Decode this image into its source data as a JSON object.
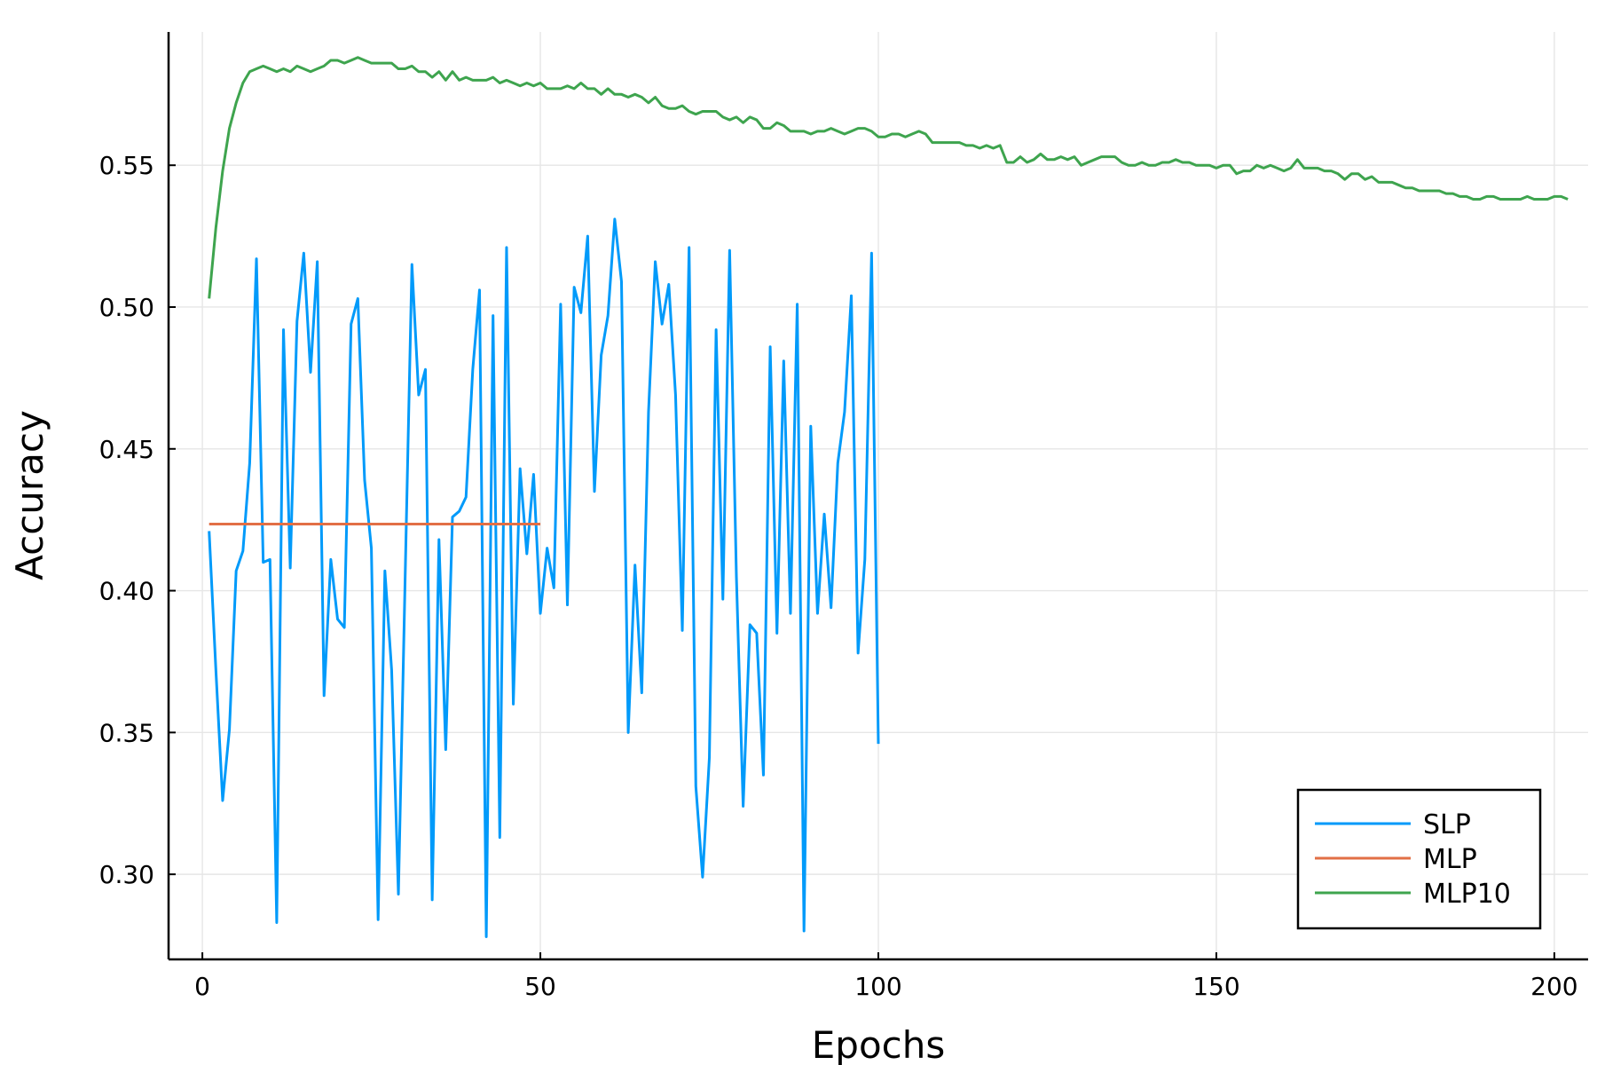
{
  "chart_data": {
    "type": "line",
    "title": "",
    "xlabel": "Epochs",
    "ylabel": "Accuracy",
    "xlim": [
      -5,
      205
    ],
    "ylim": [
      0.27,
      0.597
    ],
    "xticks": [
      0,
      50,
      100,
      150,
      200
    ],
    "yticks": [
      0.3,
      0.35,
      0.4,
      0.45,
      0.5,
      0.55
    ],
    "xtick_labels": [
      "0",
      "50",
      "100",
      "150",
      "200"
    ],
    "ytick_labels": [
      "0.30",
      "0.35",
      "0.40",
      "0.45",
      "0.50",
      "0.55"
    ],
    "grid": true,
    "legend_position": "bottom-right",
    "series": [
      {
        "name": "SLP",
        "color": "#009AFA",
        "x_start": 1,
        "values": [
          0.421,
          0.372,
          0.326,
          0.351,
          0.407,
          0.414,
          0.445,
          0.517,
          0.41,
          0.411,
          0.283,
          0.492,
          0.408,
          0.495,
          0.519,
          0.477,
          0.516,
          0.363,
          0.411,
          0.39,
          0.387,
          0.494,
          0.503,
          0.439,
          0.415,
          0.284,
          0.407,
          0.372,
          0.293,
          0.405,
          0.515,
          0.469,
          0.478,
          0.291,
          0.418,
          0.344,
          0.426,
          0.428,
          0.433,
          0.478,
          0.506,
          0.278,
          0.497,
          0.313,
          0.521,
          0.36,
          0.443,
          0.413,
          0.441,
          0.392,
          0.415,
          0.401,
          0.501,
          0.395,
          0.507,
          0.498,
          0.525,
          0.435,
          0.483,
          0.497,
          0.531,
          0.509,
          0.35,
          0.409,
          0.364,
          0.463,
          0.516,
          0.494,
          0.508,
          0.469,
          0.386,
          0.521,
          0.331,
          0.299,
          0.341,
          0.492,
          0.397,
          0.52,
          0.405,
          0.324,
          0.388,
          0.385,
          0.335,
          0.486,
          0.385,
          0.481,
          0.392,
          0.501,
          0.28,
          0.458,
          0.392,
          0.427,
          0.394,
          0.445,
          0.463,
          0.504,
          0.378,
          0.411,
          0.519,
          0.346
        ]
      },
      {
        "name": "MLP",
        "color": "#E26F46",
        "x_start": 1,
        "values": [
          0.4235,
          0.4235,
          0.4235,
          0.4235,
          0.4235,
          0.4235,
          0.4235,
          0.4235,
          0.4235,
          0.4235,
          0.4235,
          0.4235,
          0.4235,
          0.4235,
          0.4235,
          0.4235,
          0.4235,
          0.4235,
          0.4235,
          0.4235,
          0.4235,
          0.4235,
          0.4235,
          0.4235,
          0.4235,
          0.4235,
          0.4235,
          0.4235,
          0.4235,
          0.4235,
          0.4235,
          0.4235,
          0.4235,
          0.4235,
          0.4235,
          0.4235,
          0.4235,
          0.4235,
          0.4235,
          0.4235,
          0.4235,
          0.4235,
          0.4235,
          0.4235,
          0.4235,
          0.4235,
          0.4235,
          0.4235,
          0.4235,
          0.4235
        ]
      },
      {
        "name": "MLP10",
        "color": "#3EA44E",
        "x_start": 1,
        "values": [
          0.503,
          0.528,
          0.548,
          0.563,
          0.572,
          0.579,
          0.583,
          0.584,
          0.585,
          0.584,
          0.583,
          0.584,
          0.583,
          0.585,
          0.584,
          0.583,
          0.584,
          0.585,
          0.587,
          0.587,
          0.586,
          0.587,
          0.588,
          0.587,
          0.586,
          0.586,
          0.586,
          0.586,
          0.584,
          0.584,
          0.585,
          0.583,
          0.583,
          0.581,
          0.583,
          0.58,
          0.583,
          0.58,
          0.581,
          0.58,
          0.58,
          0.58,
          0.581,
          0.579,
          0.58,
          0.579,
          0.578,
          0.579,
          0.578,
          0.579,
          0.577,
          0.577,
          0.577,
          0.578,
          0.577,
          0.579,
          0.577,
          0.577,
          0.575,
          0.577,
          0.575,
          0.575,
          0.574,
          0.575,
          0.574,
          0.572,
          0.574,
          0.571,
          0.57,
          0.57,
          0.571,
          0.569,
          0.568,
          0.569,
          0.569,
          0.569,
          0.567,
          0.566,
          0.567,
          0.565,
          0.567,
          0.566,
          0.563,
          0.563,
          0.565,
          0.564,
          0.562,
          0.562,
          0.562,
          0.561,
          0.562,
          0.562,
          0.563,
          0.562,
          0.561,
          0.562,
          0.563,
          0.563,
          0.562,
          0.56,
          0.56,
          0.561,
          0.561,
          0.56,
          0.561,
          0.562,
          0.561,
          0.558,
          0.558,
          0.558,
          0.558,
          0.558,
          0.557,
          0.557,
          0.556,
          0.557,
          0.556,
          0.557,
          0.551,
          0.551,
          0.553,
          0.551,
          0.552,
          0.554,
          0.552,
          0.552,
          0.553,
          0.552,
          0.553,
          0.55,
          0.551,
          0.552,
          0.553,
          0.553,
          0.553,
          0.551,
          0.55,
          0.55,
          0.551,
          0.55,
          0.55,
          0.551,
          0.551,
          0.552,
          0.551,
          0.551,
          0.55,
          0.55,
          0.55,
          0.549,
          0.55,
          0.55,
          0.547,
          0.548,
          0.548,
          0.55,
          0.549,
          0.55,
          0.549,
          0.548,
          0.549,
          0.552,
          0.549,
          0.549,
          0.549,
          0.548,
          0.548,
          0.547,
          0.545,
          0.547,
          0.547,
          0.545,
          0.546,
          0.544,
          0.544,
          0.544,
          0.543,
          0.542,
          0.542,
          0.541,
          0.541,
          0.541,
          0.541,
          0.54,
          0.54,
          0.539,
          0.539,
          0.538,
          0.538,
          0.539,
          0.539,
          0.538,
          0.538,
          0.538,
          0.538,
          0.539,
          0.538,
          0.538,
          0.538,
          0.539,
          0.539,
          0.538
        ]
      }
    ]
  }
}
